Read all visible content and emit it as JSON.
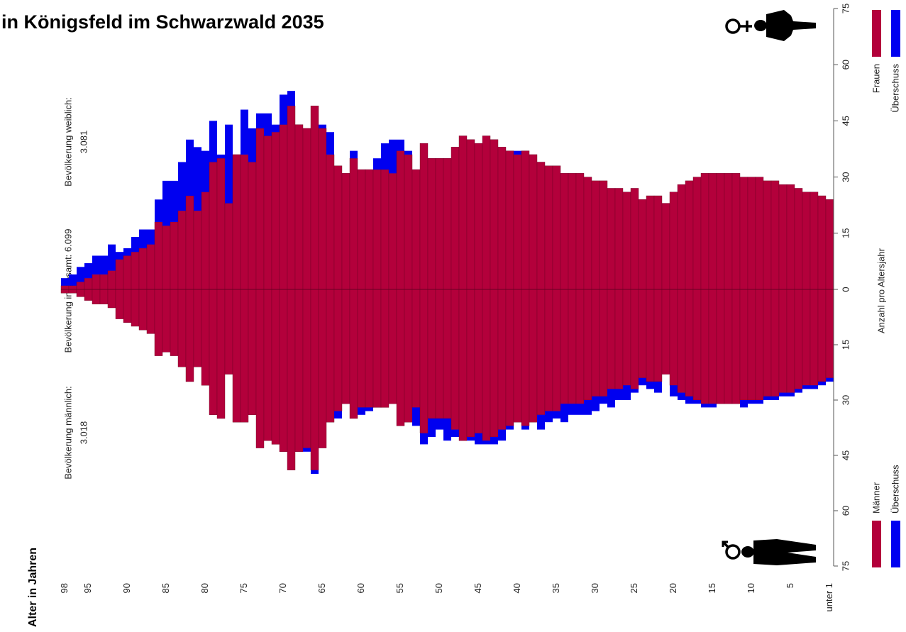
{
  "chart_data": {
    "type": "bar",
    "title": "in Königsfeld im Schwarzwald 2035",
    "xlabel": "Alter in Jahren",
    "ylabel": "Anzahl pro Altersjahr",
    "annotations": [
      "Bevölkerung insgesamt: 6.099",
      "Bevölkerung weiblich:",
      "3.081",
      "Bevölkerung männlich:",
      "3.018"
    ],
    "categories": [
      "98",
      null,
      null,
      "95",
      null,
      null,
      null,
      null,
      "90",
      null,
      null,
      null,
      null,
      "85",
      null,
      null,
      null,
      null,
      "80",
      null,
      null,
      null,
      null,
      "75",
      null,
      null,
      null,
      null,
      "70",
      null,
      null,
      null,
      null,
      "65",
      null,
      null,
      null,
      null,
      "60",
      null,
      null,
      null,
      null,
      "55",
      null,
      null,
      null,
      null,
      "50",
      null,
      null,
      null,
      null,
      "45",
      null,
      null,
      null,
      null,
      "40",
      null,
      null,
      null,
      null,
      "35",
      null,
      null,
      null,
      null,
      "30",
      null,
      null,
      null,
      null,
      "25",
      null,
      null,
      null,
      null,
      "20",
      null,
      null,
      null,
      null,
      "15",
      null,
      null,
      null,
      null,
      "10",
      null,
      null,
      null,
      null,
      "5",
      null,
      null,
      null,
      null,
      "unter 1"
    ],
    "series": [
      {
        "name": "Frauen",
        "color": "#b3003b",
        "values": [
          3,
          4,
          6,
          7,
          9,
          9,
          12,
          10,
          11,
          14,
          16,
          16,
          24,
          29,
          29,
          34,
          40,
          38,
          37,
          45,
          36,
          44,
          36,
          48,
          43,
          47,
          47,
          44,
          52,
          53,
          44,
          43,
          49,
          44,
          42,
          33,
          31,
          37,
          32,
          32,
          35,
          39,
          40,
          40,
          37,
          32,
          39,
          35,
          35,
          35,
          38,
          41,
          40,
          39,
          41,
          40,
          38,
          37,
          37,
          37,
          36,
          34,
          33,
          33,
          31,
          31,
          31,
          30,
          29,
          29,
          27,
          27,
          26,
          27,
          24,
          25,
          25,
          23,
          26,
          28,
          29,
          30,
          31,
          31,
          31,
          31,
          31,
          30,
          30,
          30,
          29,
          29,
          28,
          28,
          27,
          26,
          26,
          25,
          24
        ]
      },
      {
        "name": "Männer",
        "color": "#b3003b",
        "axis": "y2",
        "values": [
          1,
          1,
          2,
          3,
          4,
          4,
          5,
          8,
          9,
          10,
          11,
          12,
          18,
          17,
          18,
          21,
          25,
          21,
          26,
          34,
          35,
          23,
          36,
          36,
          34,
          43,
          41,
          42,
          44,
          49,
          44,
          44,
          50,
          43,
          36,
          35,
          31,
          35,
          34,
          33,
          32,
          32,
          31,
          37,
          36,
          37,
          42,
          40,
          38,
          41,
          40,
          41,
          41,
          42,
          42,
          42,
          41,
          38,
          36,
          38,
          36,
          38,
          36,
          35,
          36,
          34,
          34,
          34,
          33,
          31,
          32,
          30,
          30,
          28,
          26,
          27,
          28,
          23,
          29,
          30,
          31,
          31,
          32,
          32,
          31,
          31,
          31,
          32,
          31,
          31,
          30,
          30,
          29,
          29,
          28,
          27,
          27,
          26,
          25
        ]
      }
    ],
    "excess": {
      "name": "Überschuss",
      "color": "#0000f0"
    },
    "ylim": [
      0,
      75
    ],
    "yticks": [
      0,
      15,
      30,
      45,
      60,
      75
    ],
    "y2lim": [
      0,
      75
    ],
    "y2ticks": [
      15,
      30,
      45,
      60,
      75
    ]
  }
}
